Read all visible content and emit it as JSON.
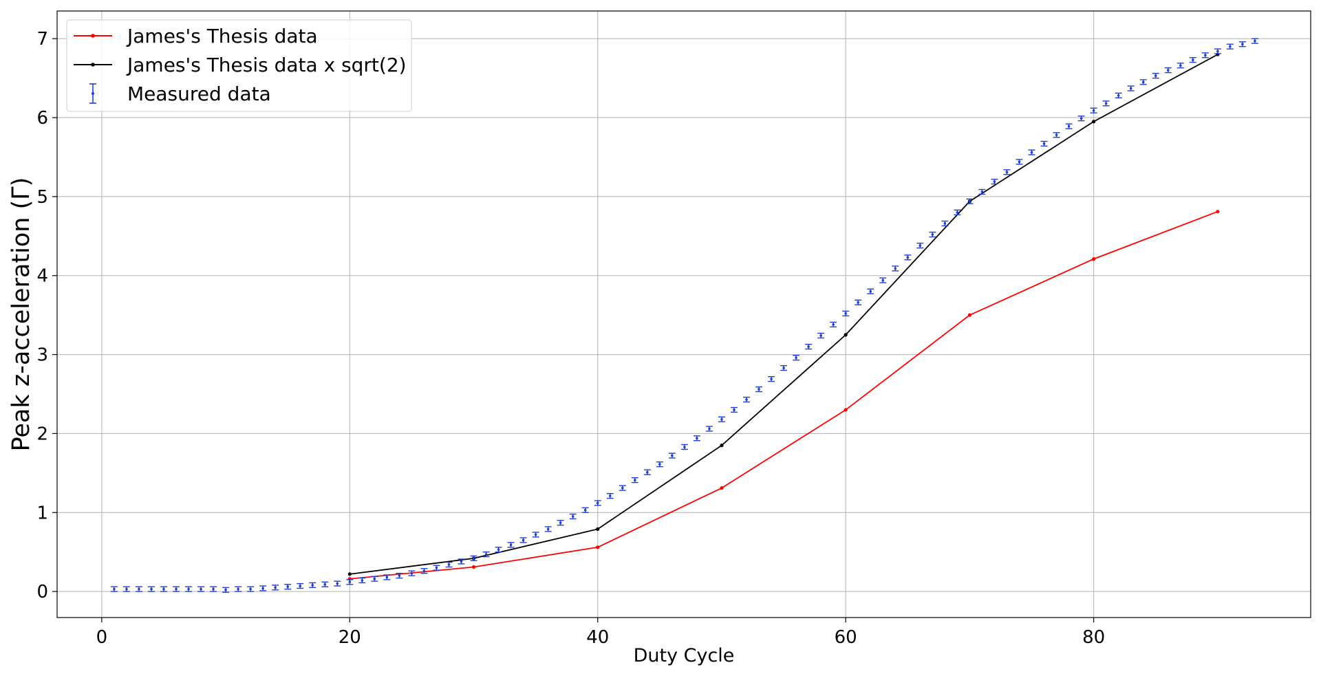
{
  "chart_data": {
    "type": "line",
    "title": "",
    "xlabel": "Duty Cycle",
    "ylabel": "Peak z-acceleration (Γ)",
    "xlim": [
      -3.6,
      97.5
    ],
    "ylim": [
      -0.33,
      7.35
    ],
    "xticks": [
      0,
      20,
      40,
      60,
      80
    ],
    "xtick_labels": [
      "0",
      "20",
      "40",
      "60",
      "80"
    ],
    "yticks": [
      0,
      1,
      2,
      3,
      4,
      5,
      6,
      7
    ],
    "ytick_labels": [
      "0",
      "1",
      "2",
      "3",
      "4",
      "5",
      "6",
      "7"
    ],
    "grid": true,
    "legend_position": "top-left",
    "series": [
      {
        "name": "James's Thesis data",
        "style": "line-markers",
        "color": "#ff0000",
        "x": [
          20,
          30,
          40,
          50,
          60,
          70,
          80,
          90
        ],
        "y": [
          0.16,
          0.31,
          0.56,
          1.31,
          2.3,
          3.5,
          4.21,
          4.81
        ]
      },
      {
        "name": "James's Thesis data x sqrt(2)",
        "style": "line-markers",
        "color": "#000000",
        "x": [
          20,
          30,
          40,
          50,
          60,
          70,
          80,
          90
        ],
        "y": [
          0.22,
          0.42,
          0.79,
          1.85,
          3.25,
          4.94,
          5.95,
          6.8
        ]
      },
      {
        "name": "Measured data",
        "style": "errorbar",
        "color": "#1f3fd4",
        "x": [
          1,
          2,
          3,
          4,
          5,
          6,
          7,
          8,
          9,
          10,
          11,
          12,
          13,
          14,
          15,
          16,
          17,
          18,
          19,
          20,
          21,
          22,
          23,
          24,
          25,
          26,
          27,
          28,
          29,
          30,
          31,
          32,
          33,
          34,
          35,
          36,
          37,
          38,
          39,
          40,
          41,
          42,
          43,
          44,
          45,
          46,
          47,
          48,
          49,
          50,
          51,
          52,
          53,
          54,
          55,
          56,
          57,
          58,
          59,
          60,
          61,
          62,
          63,
          64,
          65,
          66,
          67,
          68,
          69,
          70,
          71,
          72,
          73,
          74,
          75,
          76,
          77,
          78,
          79,
          80,
          81,
          82,
          83,
          84,
          85,
          86,
          87,
          88,
          89,
          90,
          91,
          92,
          93
        ],
        "y": [
          0.03,
          0.03,
          0.03,
          0.03,
          0.03,
          0.03,
          0.03,
          0.03,
          0.03,
          0.02,
          0.03,
          0.03,
          0.04,
          0.05,
          0.06,
          0.07,
          0.08,
          0.09,
          0.1,
          0.12,
          0.14,
          0.16,
          0.18,
          0.2,
          0.23,
          0.26,
          0.3,
          0.34,
          0.38,
          0.42,
          0.47,
          0.53,
          0.59,
          0.65,
          0.72,
          0.79,
          0.87,
          0.95,
          1.03,
          1.12,
          1.21,
          1.31,
          1.41,
          1.51,
          1.61,
          1.72,
          1.83,
          1.94,
          2.06,
          2.18,
          2.3,
          2.43,
          2.56,
          2.69,
          2.83,
          2.96,
          3.1,
          3.24,
          3.38,
          3.52,
          3.66,
          3.8,
          3.94,
          4.09,
          4.23,
          4.38,
          4.52,
          4.66,
          4.8,
          4.94,
          5.06,
          5.19,
          5.31,
          5.44,
          5.56,
          5.67,
          5.78,
          5.89,
          5.99,
          6.09,
          6.18,
          6.28,
          6.37,
          6.45,
          6.53,
          6.6,
          6.66,
          6.73,
          6.79,
          6.84,
          6.9,
          6.93,
          6.97
        ],
        "yerr": 0.03
      }
    ]
  }
}
